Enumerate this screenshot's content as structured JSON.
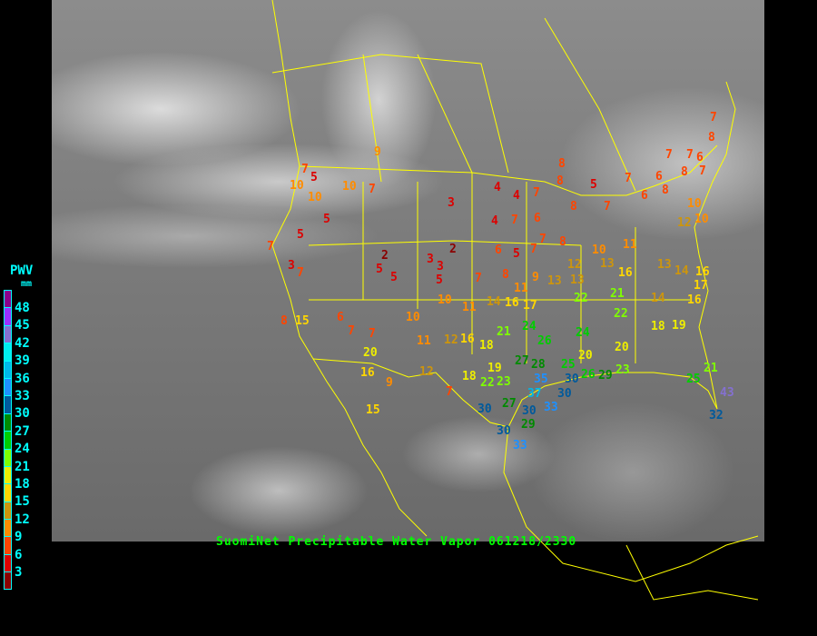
{
  "caption": "SuomiNet Precipitable Water Vapor 061218/2330",
  "legend": {
    "title": "PWV",
    "unit": "mm",
    "labels": [
      "48",
      "45",
      "42",
      "39",
      "36",
      "33",
      "30",
      "27",
      "24",
      "21",
      "18",
      "15",
      "12",
      "9",
      "6",
      "3"
    ],
    "colors": [
      "#8b008b",
      "#9b30ff",
      "#8470d0",
      "#00eeee",
      "#00b8e8",
      "#1e90ff",
      "#005a9c",
      "#008b00",
      "#00cd00",
      "#7fff00",
      "#eeee00",
      "#ffd700",
      "#cd950c",
      "#ff8c00",
      "#ff4500",
      "#dd0000",
      "#8b0000"
    ]
  },
  "border_color": "#ffff00",
  "stations": [
    9,
    7,
    5,
    10,
    10,
    10,
    7,
    5,
    5,
    7,
    3,
    7,
    2,
    5,
    5,
    3,
    3,
    5,
    3,
    2,
    4,
    4,
    7,
    4,
    7,
    6,
    6,
    5,
    7,
    7,
    8,
    8,
    8,
    5,
    8,
    7,
    7,
    6,
    7,
    7,
    6,
    7,
    8,
    7,
    8,
    8,
    6,
    10,
    12,
    10,
    7,
    8,
    9,
    13,
    12,
    10,
    11,
    13,
    16,
    13,
    14,
    16,
    17,
    13,
    11,
    10,
    11,
    14,
    16,
    17,
    22,
    21,
    22,
    14,
    16,
    18,
    19,
    20,
    20,
    24,
    8,
    15,
    6,
    7,
    7,
    10,
    11,
    12,
    16,
    18,
    21,
    24,
    26,
    20,
    16,
    9,
    12,
    7,
    18,
    19,
    22,
    23,
    27,
    28,
    25,
    35,
    37,
    30,
    30,
    26,
    29,
    23,
    25,
    21,
    43,
    32,
    30,
    27,
    30,
    33,
    29,
    30,
    33,
    15
  ]
}
